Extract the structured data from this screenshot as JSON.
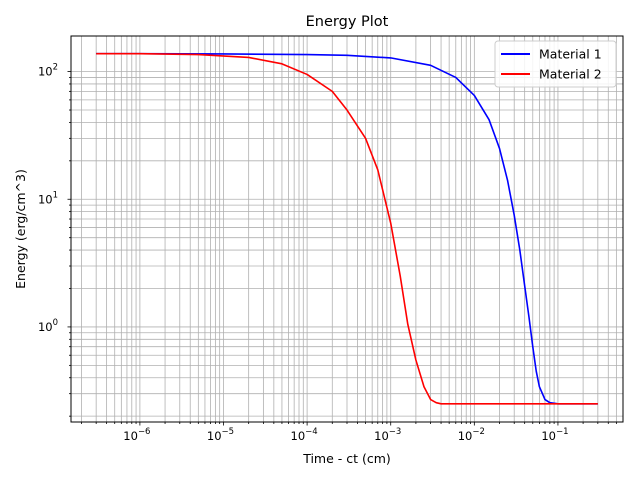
{
  "chart_data": {
    "type": "line",
    "title": "Energy Plot",
    "xlabel": "Time - ct (cm)",
    "ylabel": "Energy (erg/cm^3)",
    "xscale": "log",
    "yscale": "log",
    "xlim": [
      1.5e-07,
      0.6
    ],
    "ylim": [
      0.18,
      190
    ],
    "grid": "both-major-minor",
    "legend_position": "top-right",
    "x_ticks": [
      {
        "value": 1e-06,
        "base": "10",
        "exp": "−6"
      },
      {
        "value": 1e-05,
        "base": "10",
        "exp": "−5"
      },
      {
        "value": 0.0001,
        "base": "10",
        "exp": "−4"
      },
      {
        "value": 0.001,
        "base": "10",
        "exp": "−3"
      },
      {
        "value": 0.01,
        "base": "10",
        "exp": "−2"
      },
      {
        "value": 0.1,
        "base": "10",
        "exp": "−1"
      }
    ],
    "y_ticks": [
      {
        "value": 1,
        "base": "10",
        "exp": "0"
      },
      {
        "value": 10,
        "base": "10",
        "exp": "1"
      },
      {
        "value": 100,
        "base": "10",
        "exp": "2"
      }
    ],
    "series": [
      {
        "name": "Material 1",
        "color": "#0000ff",
        "x": [
          3e-07,
          1e-06,
          1e-05,
          0.0001,
          0.0003,
          0.001,
          0.003,
          0.006,
          0.01,
          0.015,
          0.02,
          0.025,
          0.03,
          0.035,
          0.04,
          0.045,
          0.05,
          0.055,
          0.06,
          0.07,
          0.08,
          0.1,
          0.15,
          0.3
        ],
        "y": [
          138,
          138,
          137.5,
          136,
          134,
          128,
          112,
          90,
          65,
          42,
          25,
          14,
          7.5,
          4,
          2.1,
          1.2,
          0.7,
          0.45,
          0.34,
          0.27,
          0.255,
          0.25,
          0.25,
          0.25
        ]
      },
      {
        "name": "Material 2",
        "color": "#ff0000",
        "x": [
          3e-07,
          1e-06,
          5e-06,
          2e-05,
          5e-05,
          0.0001,
          0.0002,
          0.0003,
          0.0005,
          0.0007,
          0.001,
          0.0013,
          0.0016,
          0.002,
          0.0025,
          0.003,
          0.0035,
          0.004,
          0.005,
          0.007,
          0.01,
          0.1,
          0.3
        ],
        "y": [
          138,
          138,
          136,
          129,
          115,
          95,
          70,
          50,
          30,
          17,
          6.5,
          2.5,
          1.05,
          0.55,
          0.34,
          0.27,
          0.255,
          0.25,
          0.25,
          0.25,
          0.25,
          0.25,
          0.25
        ]
      }
    ]
  }
}
